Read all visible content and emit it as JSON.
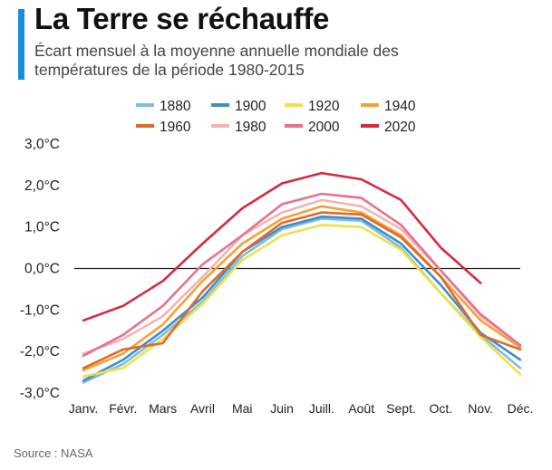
{
  "header": {
    "title": "La Terre se réchauffe",
    "subtitle": "Écart mensuel à la moyenne annuelle mondiale des températures de la période 1980-2015"
  },
  "footer": {
    "source": "Source : NASA"
  },
  "colors": {
    "accent": "#1a8cdc",
    "zero_line": "#222222"
  },
  "chart_data": {
    "type": "line",
    "title": "La Terre se réchauffe",
    "subtitle": "Écart mensuel à la moyenne annuelle mondiale des températures de la période 1980-2015",
    "categories": [
      "Janv.",
      "Févr.",
      "Mars",
      "Avril",
      "Mai",
      "Juin",
      "Juill.",
      "Août",
      "Sept.",
      "Oct.",
      "Nov.",
      "Déc."
    ],
    "ylim": [
      -3.0,
      3.0
    ],
    "yticks": [
      3.0,
      2.0,
      1.0,
      0.0,
      -1.0,
      -2.0,
      -3.0
    ],
    "ytick_labels": [
      "3,0°C",
      "2,0°C",
      "1,0°C",
      "0,0°C",
      "-1,0°C",
      "-2,0°C",
      "-3,0°C"
    ],
    "grid": false,
    "legend_position": "top",
    "series": [
      {
        "name": "1880",
        "color": "#7dbde4",
        "values": [
          -2.75,
          -2.3,
          -1.6,
          -0.8,
          0.3,
          0.95,
          1.2,
          1.15,
          0.5,
          -0.6,
          -1.6,
          -2.4
        ]
      },
      {
        "name": "1900",
        "color": "#3e8fc4",
        "values": [
          -2.7,
          -2.2,
          -1.5,
          -0.7,
          0.4,
          1.0,
          1.25,
          1.2,
          0.6,
          -0.4,
          -1.55,
          -2.2
        ]
      },
      {
        "name": "1920",
        "color": "#f0e04a",
        "values": [
          -2.6,
          -2.4,
          -1.7,
          -0.85,
          0.2,
          0.8,
          1.05,
          1.0,
          0.45,
          -0.6,
          -1.65,
          -2.55
        ]
      },
      {
        "name": "1940",
        "color": "#f5a235",
        "values": [
          -2.45,
          -2.05,
          -1.35,
          -0.3,
          0.6,
          1.2,
          1.5,
          1.35,
          0.8,
          -0.2,
          -1.25,
          -1.9
        ]
      },
      {
        "name": "1960",
        "color": "#e0692a",
        "values": [
          -2.4,
          -1.95,
          -1.8,
          -0.55,
          0.4,
          1.1,
          1.35,
          1.3,
          0.75,
          -0.2,
          -1.6,
          -1.95
        ]
      },
      {
        "name": "1980",
        "color": "#f6b3b3",
        "values": [
          -2.05,
          -1.7,
          -1.15,
          -0.2,
          0.8,
          1.35,
          1.65,
          1.5,
          0.95,
          -0.05,
          -1.15,
          -1.85
        ]
      },
      {
        "name": "2000",
        "color": "#e6718f",
        "values": [
          -2.1,
          -1.6,
          -0.9,
          0.1,
          0.8,
          1.55,
          1.8,
          1.7,
          1.05,
          -0.05,
          -1.1,
          -1.85
        ]
      },
      {
        "name": "2020",
        "color": "#d42b3e",
        "values": [
          -1.25,
          -0.9,
          -0.3,
          0.6,
          1.45,
          2.05,
          2.3,
          2.15,
          1.65,
          0.5,
          -0.35,
          null
        ]
      }
    ]
  }
}
